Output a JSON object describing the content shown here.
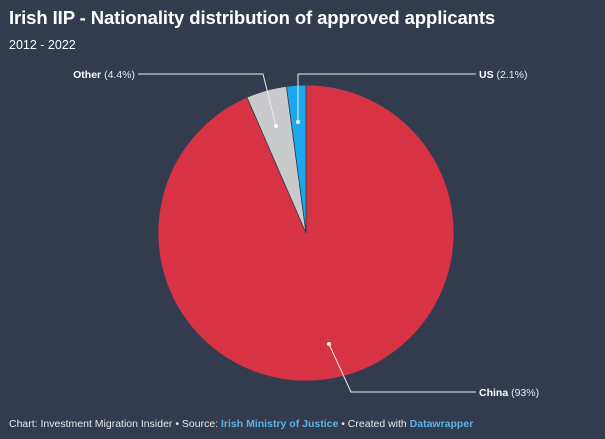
{
  "header": {
    "title": "Irish IIP - Nationality distribution of approved applicants",
    "subtitle": "2012 - 2022"
  },
  "footer": {
    "chart_prefix": "Chart: Investment Migration Insider • Source: ",
    "source_link": "Irish Ministry of Justice",
    "created_text": " • Created with ",
    "tool_link": "Datawrapper"
  },
  "chart_data": {
    "type": "pie",
    "title": "Irish IIP - Nationality distribution of approved applicants",
    "subtitle": "2012 - 2022",
    "slices": [
      {
        "name": "China",
        "value": 93,
        "label": "(93%)",
        "color": "#d83345"
      },
      {
        "name": "Other",
        "value": 4.4,
        "label": "(4.4%)",
        "color": "#c9cacb"
      },
      {
        "name": "US",
        "value": 2.1,
        "label": "(2.1%)",
        "color": "#1aa7ec"
      }
    ]
  }
}
